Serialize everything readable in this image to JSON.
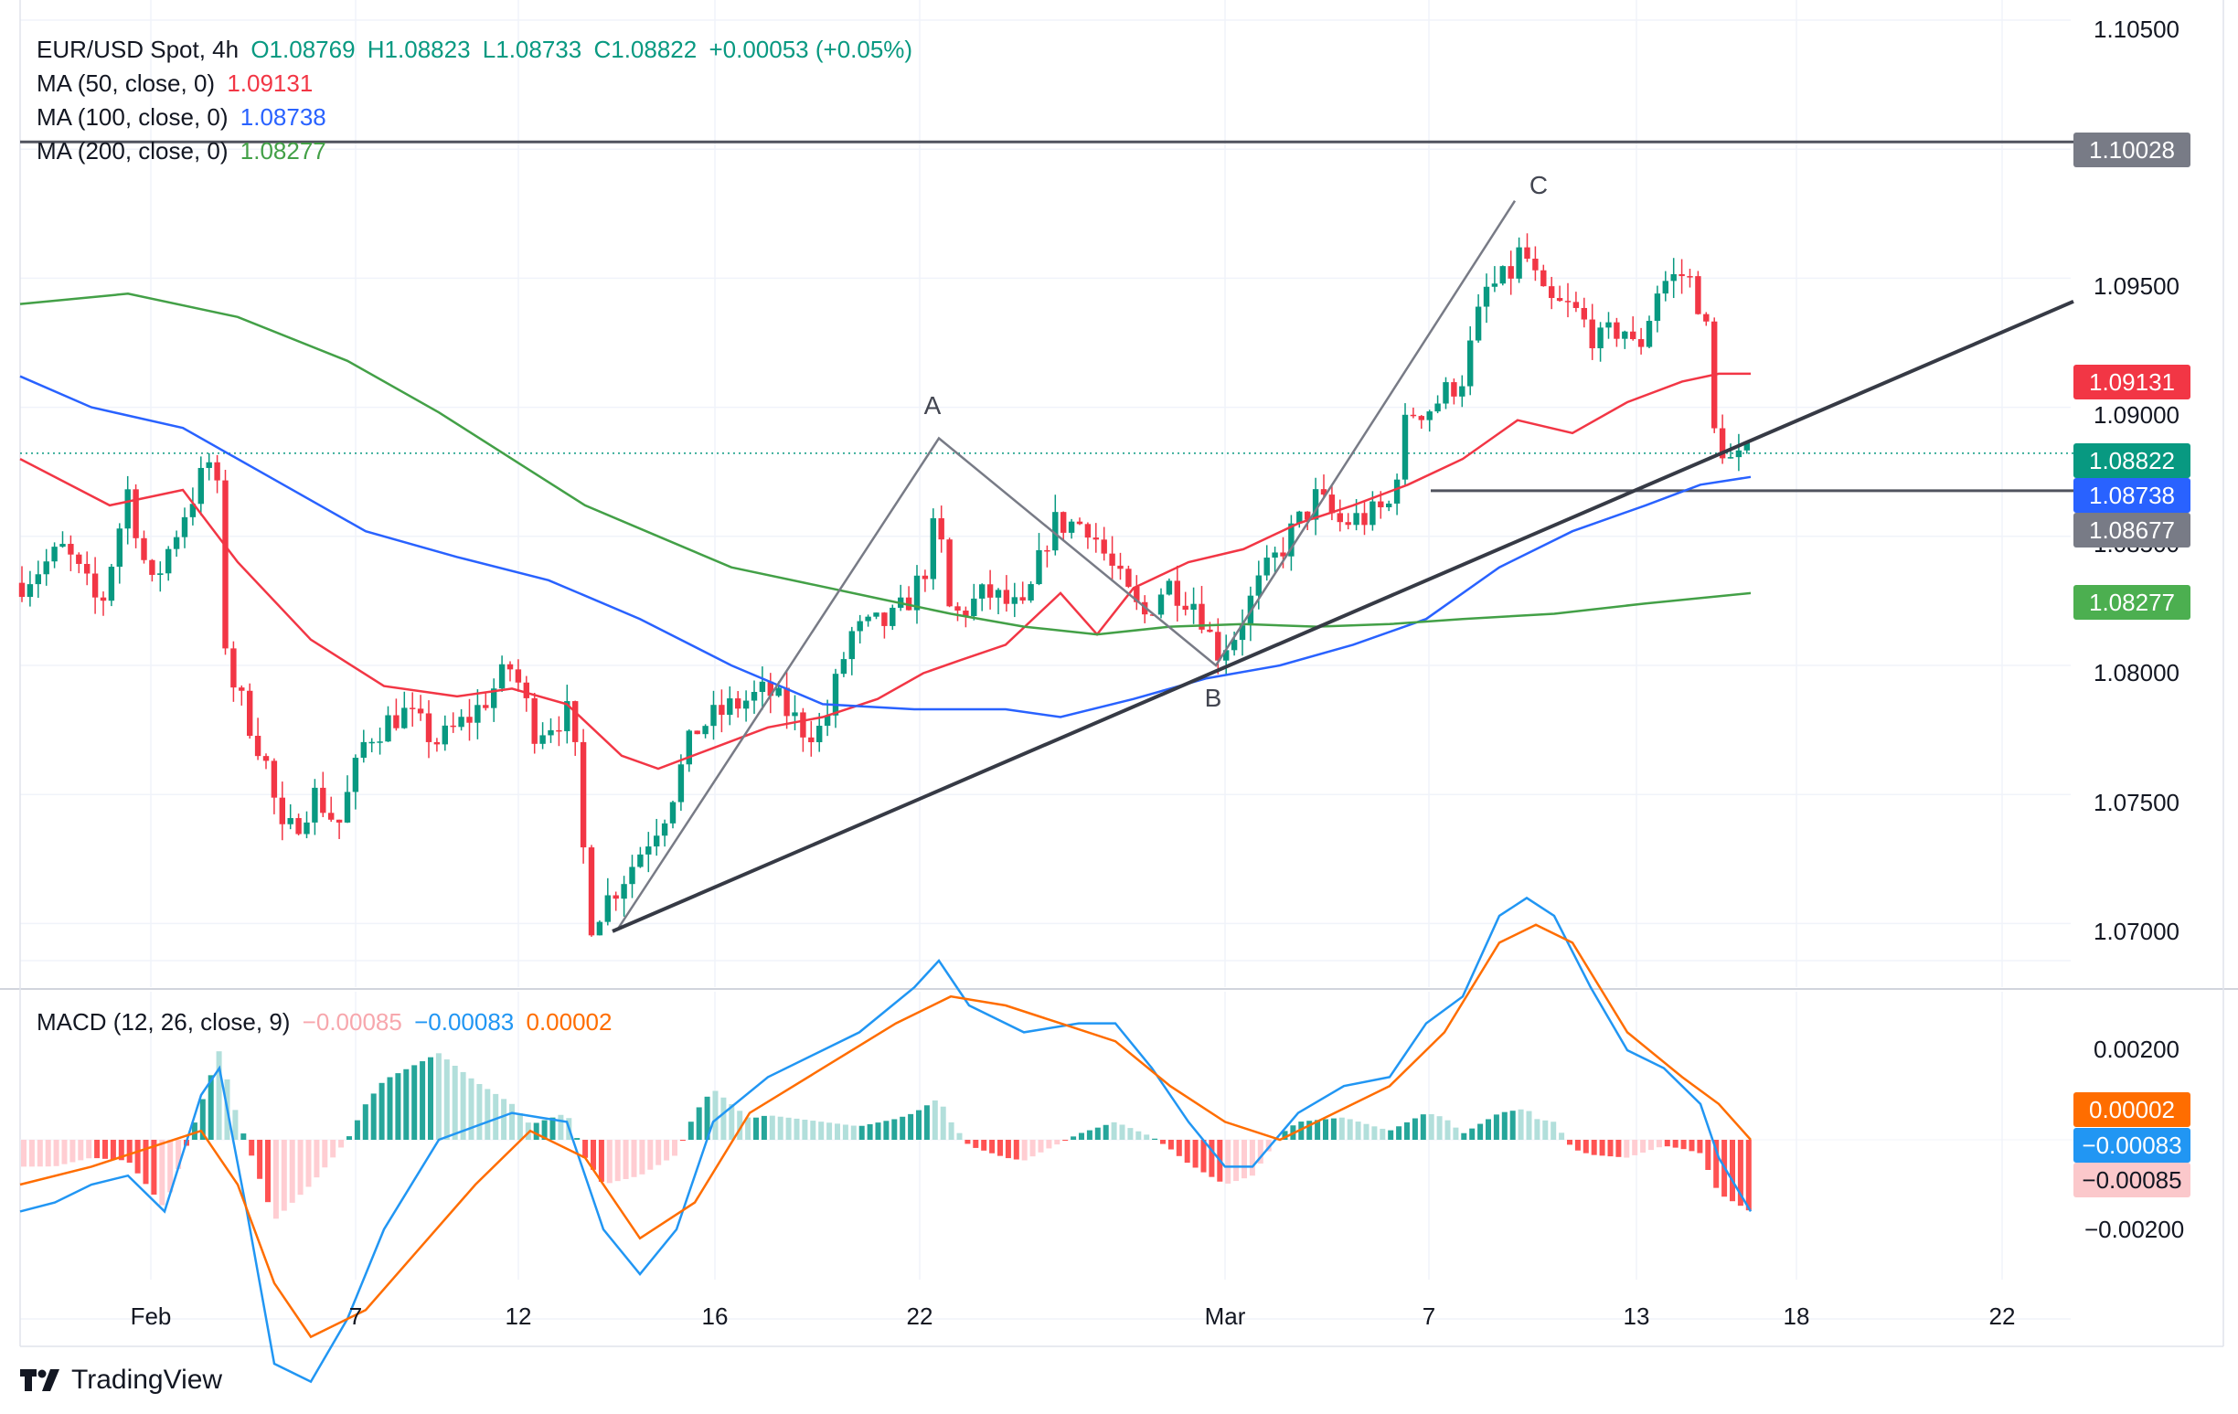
{
  "header": {
    "symbol": "EUR/USD Spot, 4h",
    "open": "O1.08769",
    "high": "H1.08823",
    "low": "L1.08733",
    "close": "C1.08822",
    "change": "+0.00053 (+0.05%)",
    "ma50": {
      "label": "MA (50, close, 0)",
      "value": "1.09131"
    },
    "ma100": {
      "label": "MA (100, close, 0)",
      "value": "1.08738"
    },
    "ma200": {
      "label": "MA (200, close, 0)",
      "value": "1.08277"
    },
    "macd": {
      "label": "MACD (12, 26, close, 9)",
      "hist": "−0.00085",
      "macd": "−0.00083",
      "signal": "0.00002"
    }
  },
  "colors": {
    "ma50": "#f23645",
    "ma100": "#2962ff",
    "ma200": "#43a047",
    "up": "#089981",
    "down": "#f23645",
    "macd": "#2196f3",
    "signal": "#ff6d00"
  },
  "badges": {
    "resistance": "1.10028",
    "ma50": "1.09131",
    "last": "1.08822",
    "ma100": "1.08738",
    "support": "1.08677",
    "ma200": "1.08277",
    "signal": "0.00002",
    "macd": "−0.00083",
    "hist": "−0.00085"
  },
  "price_ticks": [
    "1.10500",
    "1.09500",
    "1.09000",
    "1.08500",
    "1.08000",
    "1.07500",
    "1.07000"
  ],
  "macd_ticks": [
    "0.00200",
    "−0.00200"
  ],
  "x_ticks": [
    "Feb",
    "7",
    "12",
    "16",
    "22",
    "Mar",
    "7",
    "13",
    "18",
    "22"
  ],
  "wave_labels": {
    "a": "A",
    "b": "B",
    "c": "C"
  },
  "logo": "TradingView",
  "chart_data": {
    "type": "candlestick",
    "timeframe": "4h",
    "y_range": [
      1.068,
      1.1065
    ],
    "levels": {
      "resistance": 1.10028,
      "support": 1.08677
    },
    "key_points": [
      {
        "date": "Feb 13",
        "price": 1.0698
      },
      {
        "date": "Feb 22",
        "price": 1.0888
      },
      {
        "date": "Feb 29",
        "price": 1.08
      },
      {
        "date": "Mar 8",
        "price": 1.098
      }
    ],
    "trendline": [
      {
        "date": "Feb 13",
        "price": 1.0698
      },
      {
        "date": "Mar 16",
        "price": 1.094
      }
    ],
    "macd_range": [
      -0.0031,
      0.0035
    ]
  }
}
